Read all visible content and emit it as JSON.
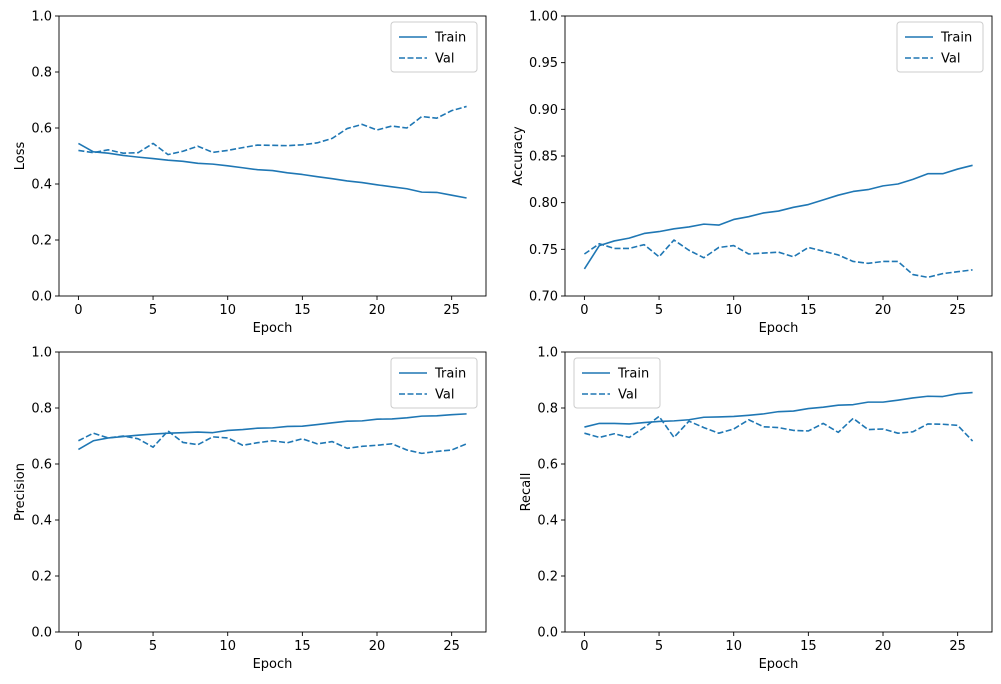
{
  "colors": {
    "line": "#1f77b4",
    "axis": "#000000",
    "legend_border": "#cccccc"
  },
  "chart_data": [
    {
      "type": "line",
      "title": "",
      "xlabel": "Epoch",
      "ylabel": "Loss",
      "xlim": [
        -1.3,
        27.3
      ],
      "ylim": [
        0.0,
        1.0
      ],
      "xticks": [
        0,
        5,
        10,
        15,
        20,
        25
      ],
      "yticks": [
        0.0,
        0.2,
        0.4,
        0.6,
        0.8,
        1.0
      ],
      "ytick_labels": [
        "0.0",
        "0.2",
        "0.4",
        "0.6",
        "0.8",
        "1.0"
      ],
      "legend_position": "top-right",
      "grid": false,
      "x": [
        0,
        1,
        2,
        3,
        4,
        5,
        6,
        7,
        8,
        9,
        10,
        11,
        12,
        13,
        14,
        15,
        16,
        17,
        18,
        19,
        20,
        21,
        22,
        23,
        24,
        25,
        26
      ],
      "series": [
        {
          "name": "Train",
          "style": "solid",
          "values": [
            0.545,
            0.515,
            0.51,
            0.502,
            0.496,
            0.491,
            0.485,
            0.481,
            0.474,
            0.471,
            0.465,
            0.458,
            0.451,
            0.448,
            0.44,
            0.434,
            0.426,
            0.419,
            0.411,
            0.405,
            0.397,
            0.39,
            0.383,
            0.371,
            0.37,
            0.36,
            0.35
          ]
        },
        {
          "name": "Val",
          "style": "dashed",
          "values": [
            0.52,
            0.512,
            0.522,
            0.51,
            0.512,
            0.545,
            0.505,
            0.517,
            0.535,
            0.513,
            0.52,
            0.53,
            0.539,
            0.538,
            0.537,
            0.54,
            0.547,
            0.563,
            0.598,
            0.613,
            0.593,
            0.607,
            0.6,
            0.641,
            0.635,
            0.662,
            0.677
          ]
        }
      ]
    },
    {
      "type": "line",
      "title": "",
      "xlabel": "Epoch",
      "ylabel": "Accuracy",
      "xlim": [
        -1.3,
        27.3
      ],
      "ylim": [
        0.7,
        1.0
      ],
      "xticks": [
        0,
        5,
        10,
        15,
        20,
        25
      ],
      "yticks": [
        0.7,
        0.75,
        0.8,
        0.85,
        0.9,
        0.95,
        1.0
      ],
      "ytick_labels": [
        "0.70",
        "0.75",
        "0.80",
        "0.85",
        "0.90",
        "0.95",
        "1.00"
      ],
      "legend_position": "top-right",
      "grid": false,
      "x": [
        0,
        1,
        2,
        3,
        4,
        5,
        6,
        7,
        8,
        9,
        10,
        11,
        12,
        13,
        14,
        15,
        16,
        17,
        18,
        19,
        20,
        21,
        22,
        23,
        24,
        25,
        26
      ],
      "series": [
        {
          "name": "Train",
          "style": "solid",
          "values": [
            0.729,
            0.754,
            0.759,
            0.762,
            0.767,
            0.769,
            0.772,
            0.774,
            0.777,
            0.776,
            0.782,
            0.785,
            0.789,
            0.791,
            0.795,
            0.798,
            0.803,
            0.808,
            0.812,
            0.814,
            0.818,
            0.82,
            0.825,
            0.831,
            0.831,
            0.836,
            0.84
          ]
        },
        {
          "name": "Val",
          "style": "dashed",
          "values": [
            0.745,
            0.756,
            0.751,
            0.751,
            0.755,
            0.742,
            0.76,
            0.749,
            0.741,
            0.752,
            0.754,
            0.745,
            0.746,
            0.747,
            0.742,
            0.752,
            0.748,
            0.744,
            0.737,
            0.735,
            0.737,
            0.737,
            0.723,
            0.72,
            0.724,
            0.726,
            0.728
          ]
        }
      ]
    },
    {
      "type": "line",
      "title": "",
      "xlabel": "Epoch",
      "ylabel": "Precision",
      "xlim": [
        -1.3,
        27.3
      ],
      "ylim": [
        0.0,
        1.0
      ],
      "xticks": [
        0,
        5,
        10,
        15,
        20,
        25
      ],
      "yticks": [
        0.0,
        0.2,
        0.4,
        0.6,
        0.8,
        1.0
      ],
      "ytick_labels": [
        "0.0",
        "0.2",
        "0.4",
        "0.6",
        "0.8",
        "1.0"
      ],
      "legend_position": "top-right",
      "grid": false,
      "x": [
        0,
        1,
        2,
        3,
        4,
        5,
        6,
        7,
        8,
        9,
        10,
        11,
        12,
        13,
        14,
        15,
        16,
        17,
        18,
        19,
        20,
        21,
        22,
        23,
        24,
        25,
        26
      ],
      "series": [
        {
          "name": "Train",
          "style": "solid",
          "values": [
            0.652,
            0.683,
            0.693,
            0.698,
            0.703,
            0.707,
            0.71,
            0.712,
            0.714,
            0.712,
            0.72,
            0.723,
            0.728,
            0.729,
            0.734,
            0.735,
            0.741,
            0.747,
            0.753,
            0.754,
            0.76,
            0.761,
            0.765,
            0.771,
            0.772,
            0.776,
            0.779
          ]
        },
        {
          "name": "Val",
          "style": "dashed",
          "values": [
            0.683,
            0.71,
            0.693,
            0.7,
            0.69,
            0.66,
            0.718,
            0.677,
            0.669,
            0.697,
            0.693,
            0.667,
            0.676,
            0.683,
            0.676,
            0.69,
            0.672,
            0.68,
            0.656,
            0.663,
            0.667,
            0.672,
            0.65,
            0.638,
            0.645,
            0.65,
            0.672
          ]
        }
      ]
    },
    {
      "type": "line",
      "title": "",
      "xlabel": "Epoch",
      "ylabel": "Recall",
      "xlim": [
        -1.3,
        27.3
      ],
      "ylim": [
        0.0,
        1.0
      ],
      "xticks": [
        0,
        5,
        10,
        15,
        20,
        25
      ],
      "yticks": [
        0.0,
        0.2,
        0.4,
        0.6,
        0.8,
        1.0
      ],
      "ytick_labels": [
        "0.0",
        "0.2",
        "0.4",
        "0.6",
        "0.8",
        "1.0"
      ],
      "legend_position": "top-left",
      "grid": false,
      "x": [
        0,
        1,
        2,
        3,
        4,
        5,
        6,
        7,
        8,
        9,
        10,
        11,
        12,
        13,
        14,
        15,
        16,
        17,
        18,
        19,
        20,
        21,
        22,
        23,
        24,
        25,
        26
      ],
      "series": [
        {
          "name": "Train",
          "style": "solid",
          "values": [
            0.732,
            0.745,
            0.745,
            0.743,
            0.748,
            0.752,
            0.754,
            0.758,
            0.767,
            0.768,
            0.77,
            0.774,
            0.779,
            0.787,
            0.789,
            0.798,
            0.803,
            0.81,
            0.812,
            0.821,
            0.821,
            0.828,
            0.836,
            0.842,
            0.841,
            0.851,
            0.855
          ]
        },
        {
          "name": "Val",
          "style": "dashed",
          "values": [
            0.71,
            0.695,
            0.708,
            0.695,
            0.73,
            0.77,
            0.695,
            0.753,
            0.73,
            0.71,
            0.725,
            0.758,
            0.733,
            0.73,
            0.72,
            0.718,
            0.745,
            0.713,
            0.763,
            0.723,
            0.725,
            0.71,
            0.715,
            0.743,
            0.742,
            0.738,
            0.682
          ]
        }
      ]
    }
  ]
}
